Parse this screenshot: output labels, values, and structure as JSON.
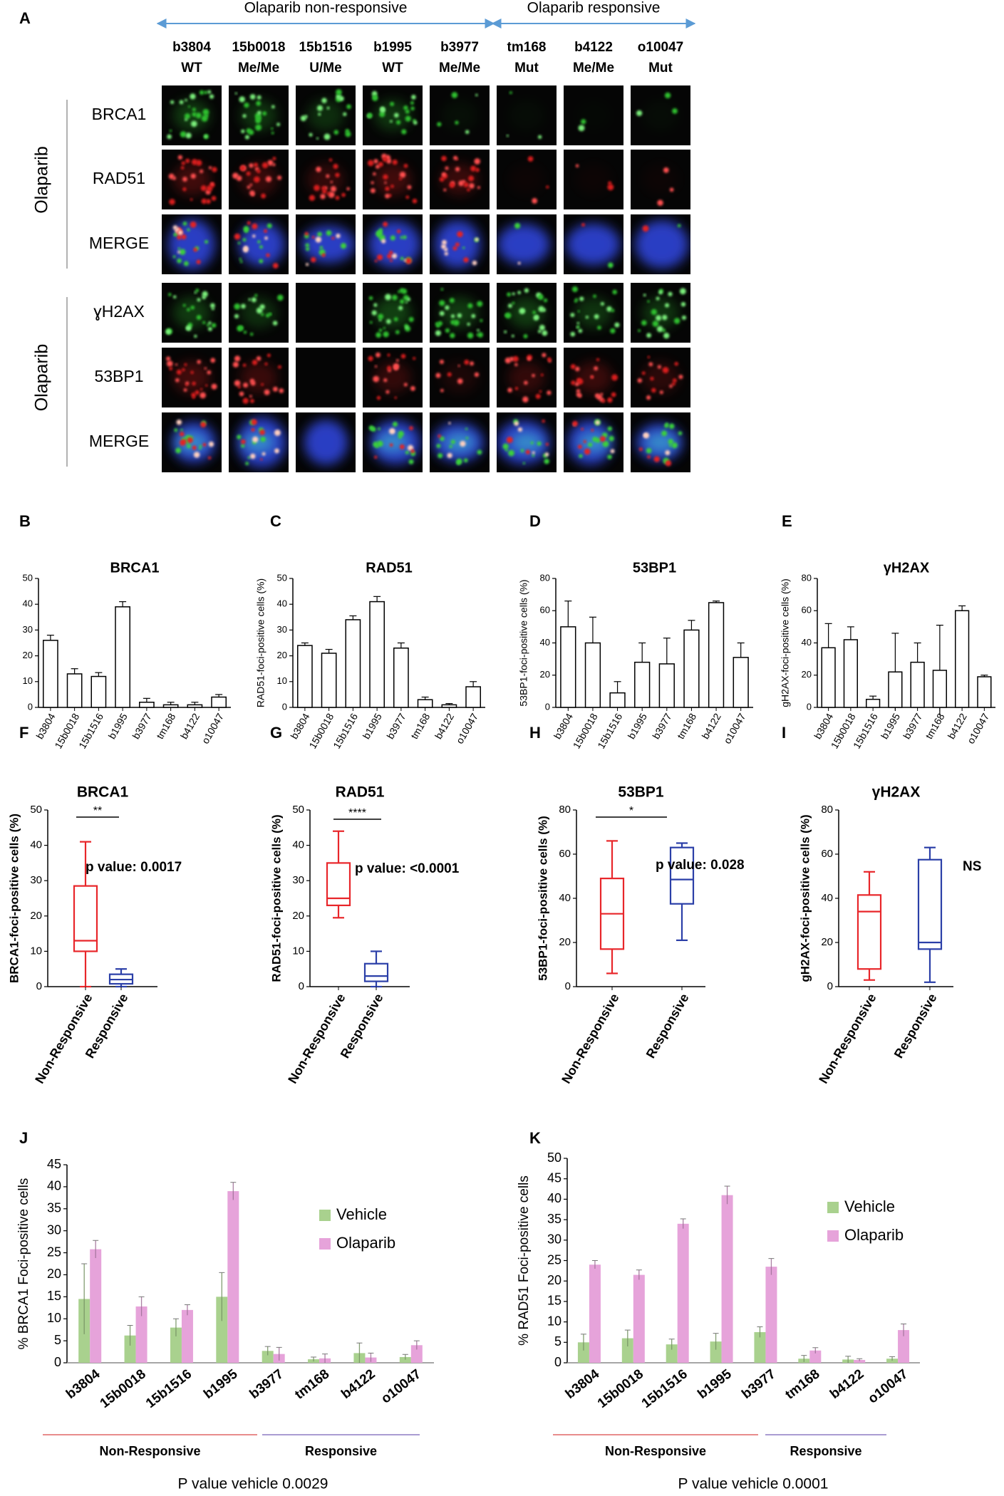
{
  "panel_a": {
    "letter": "A",
    "groups": [
      "Olaparib non-responsive",
      "Olaparib responsive"
    ],
    "columns": [
      {
        "name": "b3804",
        "status": "WT"
      },
      {
        "name": "15b0018",
        "status": "Me/Me"
      },
      {
        "name": "15b1516",
        "status": "U/Me"
      },
      {
        "name": "b1995",
        "status": "WT"
      },
      {
        "name": "b3977",
        "status": "Me/Me"
      },
      {
        "name": "tm168",
        "status": "Mut"
      },
      {
        "name": "b4122",
        "status": "Me/Me"
      },
      {
        "name": "o10047",
        "status": "Mut"
      }
    ],
    "row_groups": [
      {
        "label": "Olaparib",
        "rows": [
          "BRCA1",
          "RAD51",
          "MERGE"
        ]
      },
      {
        "label": "Olaparib",
        "rows": [
          "ɣH2AX",
          "53BP1",
          "MERGE"
        ]
      }
    ]
  },
  "chart_data": [
    {
      "type": "bar",
      "panel": "B",
      "title": "BRCA1",
      "categories": [
        "b3804",
        "15b0018",
        "15b1516",
        "b1995",
        "b3977",
        "tm168",
        "b4122",
        "o10047"
      ],
      "values": [
        26,
        13,
        12,
        39,
        2,
        1,
        1,
        4
      ],
      "errors": [
        2,
        2,
        1.5,
        2,
        1.5,
        1,
        1,
        1
      ],
      "ylim": [
        0,
        50
      ],
      "yticks": [
        0,
        10,
        20,
        30,
        40,
        50
      ],
      "color": "#ffffff"
    },
    {
      "type": "bar",
      "panel": "C",
      "title": "RAD51",
      "ylabel": "RAD51-foci-positive cells (%)",
      "categories": [
        "b3804",
        "15b0018",
        "15b1516",
        "b1995",
        "b3977",
        "tm168",
        "b4122",
        "o10047"
      ],
      "values": [
        24,
        21,
        34,
        41,
        23,
        3,
        1,
        8
      ],
      "errors": [
        1,
        1.5,
        1.5,
        2,
        2,
        1,
        0.5,
        2
      ],
      "ylim": [
        0,
        50
      ],
      "yticks": [
        0,
        10,
        20,
        30,
        40,
        50
      ],
      "color": "#ffffff"
    },
    {
      "type": "bar",
      "panel": "D",
      "title": "53BP1",
      "ylabel": "53BP1-foci-positive cells (%)",
      "categories": [
        "b3804",
        "15b0018",
        "15b1516",
        "b1995",
        "b3977",
        "tm168",
        "b4122",
        "o10047"
      ],
      "values": [
        50,
        40,
        9,
        28,
        27,
        48,
        65,
        31
      ],
      "errors": [
        16,
        16,
        7,
        12,
        16,
        6,
        1,
        9
      ],
      "ylim": [
        0,
        80
      ],
      "yticks": [
        0,
        20,
        40,
        60,
        80
      ],
      "color": "#ffffff"
    },
    {
      "type": "bar",
      "panel": "E",
      "title": "γH2AX",
      "ylabel": "gH2AX-foci-positive cells (%)",
      "categories": [
        "b3804",
        "15b0018",
        "15b1516",
        "b1995",
        "b3977",
        "tm168",
        "b4122",
        "o10047"
      ],
      "values": [
        37,
        42,
        5,
        22,
        28,
        23,
        60,
        19
      ],
      "errors": [
        15,
        8,
        2,
        24,
        12,
        28,
        3,
        1
      ],
      "ylim": [
        0,
        80
      ],
      "yticks": [
        0,
        20,
        40,
        60,
        80
      ],
      "color": "#ffffff"
    },
    {
      "type": "box",
      "panel": "F",
      "title": "BRCA1",
      "ylabel": "BRCA1-foci-positive cells (%)",
      "categories": [
        "Non-Responsive",
        "Responsive"
      ],
      "colors": [
        "#e8262a",
        "#2b3fa8"
      ],
      "boxes": [
        {
          "min": 0,
          "q1": 10,
          "median": 13,
          "q3": 28.5,
          "max": 41
        },
        {
          "min": 0,
          "q1": 0.8,
          "median": 2,
          "q3": 3.5,
          "max": 5
        }
      ],
      "significance": "**",
      "annotation": "p value: 0.0017",
      "ylim": [
        0,
        50
      ],
      "yticks": [
        0,
        10,
        20,
        30,
        40,
        50
      ]
    },
    {
      "type": "box",
      "panel": "G",
      "title": "RAD51",
      "ylabel": "RAD51-foci-positive cells (%)",
      "categories": [
        "Non-Responsive",
        "Responsive"
      ],
      "colors": [
        "#e8262a",
        "#2b3fa8"
      ],
      "boxes": [
        {
          "min": 19.5,
          "q1": 23,
          "median": 25,
          "q3": 35,
          "max": 44
        },
        {
          "min": 0,
          "q1": 1.5,
          "median": 3,
          "q3": 6.5,
          "max": 10
        }
      ],
      "significance": "****",
      "annotation": "p value: <0.0001",
      "ylim": [
        0,
        50
      ],
      "yticks": [
        0,
        10,
        20,
        30,
        40,
        50
      ]
    },
    {
      "type": "box",
      "panel": "H",
      "title": "53BP1",
      "ylabel": "53BP1-foci-positive cells (%)",
      "categories": [
        "Non-Responsive",
        "Responsive"
      ],
      "colors": [
        "#e8262a",
        "#2b3fa8"
      ],
      "boxes": [
        {
          "min": 6,
          "q1": 17,
          "median": 33,
          "q3": 49,
          "max": 66
        },
        {
          "min": 21,
          "q1": 37.5,
          "median": 48.5,
          "q3": 63,
          "max": 65
        }
      ],
      "significance": "*",
      "annotation": "p value: 0.028",
      "ylim": [
        0,
        80
      ],
      "yticks": [
        0,
        20,
        40,
        60,
        80
      ]
    },
    {
      "type": "box",
      "panel": "I",
      "title": "γH2AX",
      "ylabel": "gH2AX-foci-positive cells (%)",
      "categories": [
        "Non-Responsive",
        "Responsive"
      ],
      "colors": [
        "#e8262a",
        "#2b3fa8"
      ],
      "boxes": [
        {
          "min": 3,
          "q1": 8,
          "median": 34,
          "q3": 41.5,
          "max": 52
        },
        {
          "min": 2,
          "q1": 17,
          "median": 20,
          "q3": 57.5,
          "max": 63
        }
      ],
      "annotation": "NS",
      "ylim": [
        0,
        80
      ],
      "yticks": [
        0,
        20,
        40,
        60,
        80
      ]
    },
    {
      "type": "grouped_bar",
      "panel": "J",
      "ylabel": "% BRCA1 Foci-positive cells",
      "categories": [
        "b3804",
        "15b0018",
        "15b1516",
        "b1995",
        "b3977",
        "tm168",
        "b4122",
        "o10047"
      ],
      "series": [
        {
          "name": "Vehicle",
          "color": "#a9d18e",
          "values": [
            14.5,
            6.2,
            8,
            15,
            2.7,
            0.8,
            2.2,
            1.3
          ],
          "errors": [
            8,
            2.3,
            2,
            5.5,
            1,
            0.5,
            2.3,
            0.6
          ]
        },
        {
          "name": "Olaparib",
          "color": "#e6a3da",
          "values": [
            25.8,
            12.8,
            12,
            39,
            2,
            1,
            1.2,
            4
          ],
          "errors": [
            2,
            2.2,
            1.2,
            2,
            1.5,
            1,
            1,
            1
          ]
        }
      ],
      "groups": [
        "Non-Responsive",
        "Responsive"
      ],
      "footnote": "P value vehicle 0.0029",
      "legend": "upper right",
      "ylim": [
        0,
        45
      ],
      "yticks": [
        0,
        5,
        10,
        15,
        20,
        25,
        30,
        35,
        40,
        45
      ]
    },
    {
      "type": "grouped_bar",
      "panel": "K",
      "ylabel": "% RAD51 Foci-positive cells",
      "categories": [
        "b3804",
        "15b0018",
        "15b1516",
        "b1995",
        "b3977",
        "tm168",
        "b4122",
        "o10047"
      ],
      "series": [
        {
          "name": "Vehicle",
          "color": "#a9d18e",
          "values": [
            5,
            6,
            4.5,
            5.2,
            7.5,
            1,
            0.8,
            1
          ],
          "errors": [
            2,
            2,
            1.3,
            2,
            1.3,
            0.8,
            0.8,
            0.5
          ]
        },
        {
          "name": "Olaparib",
          "color": "#e6a3da",
          "values": [
            24,
            21.5,
            34,
            41,
            23.5,
            3,
            0.7,
            8
          ],
          "errors": [
            1,
            1.2,
            1.2,
            2.2,
            2,
            0.7,
            0.3,
            1.5
          ]
        }
      ],
      "groups": [
        "Non-Responsive",
        "Responsive"
      ],
      "footnote": "P value vehicle 0.0001",
      "legend": "upper right",
      "ylim": [
        0,
        50
      ],
      "yticks": [
        0,
        5,
        10,
        15,
        20,
        25,
        30,
        35,
        40,
        45,
        50
      ]
    }
  ]
}
